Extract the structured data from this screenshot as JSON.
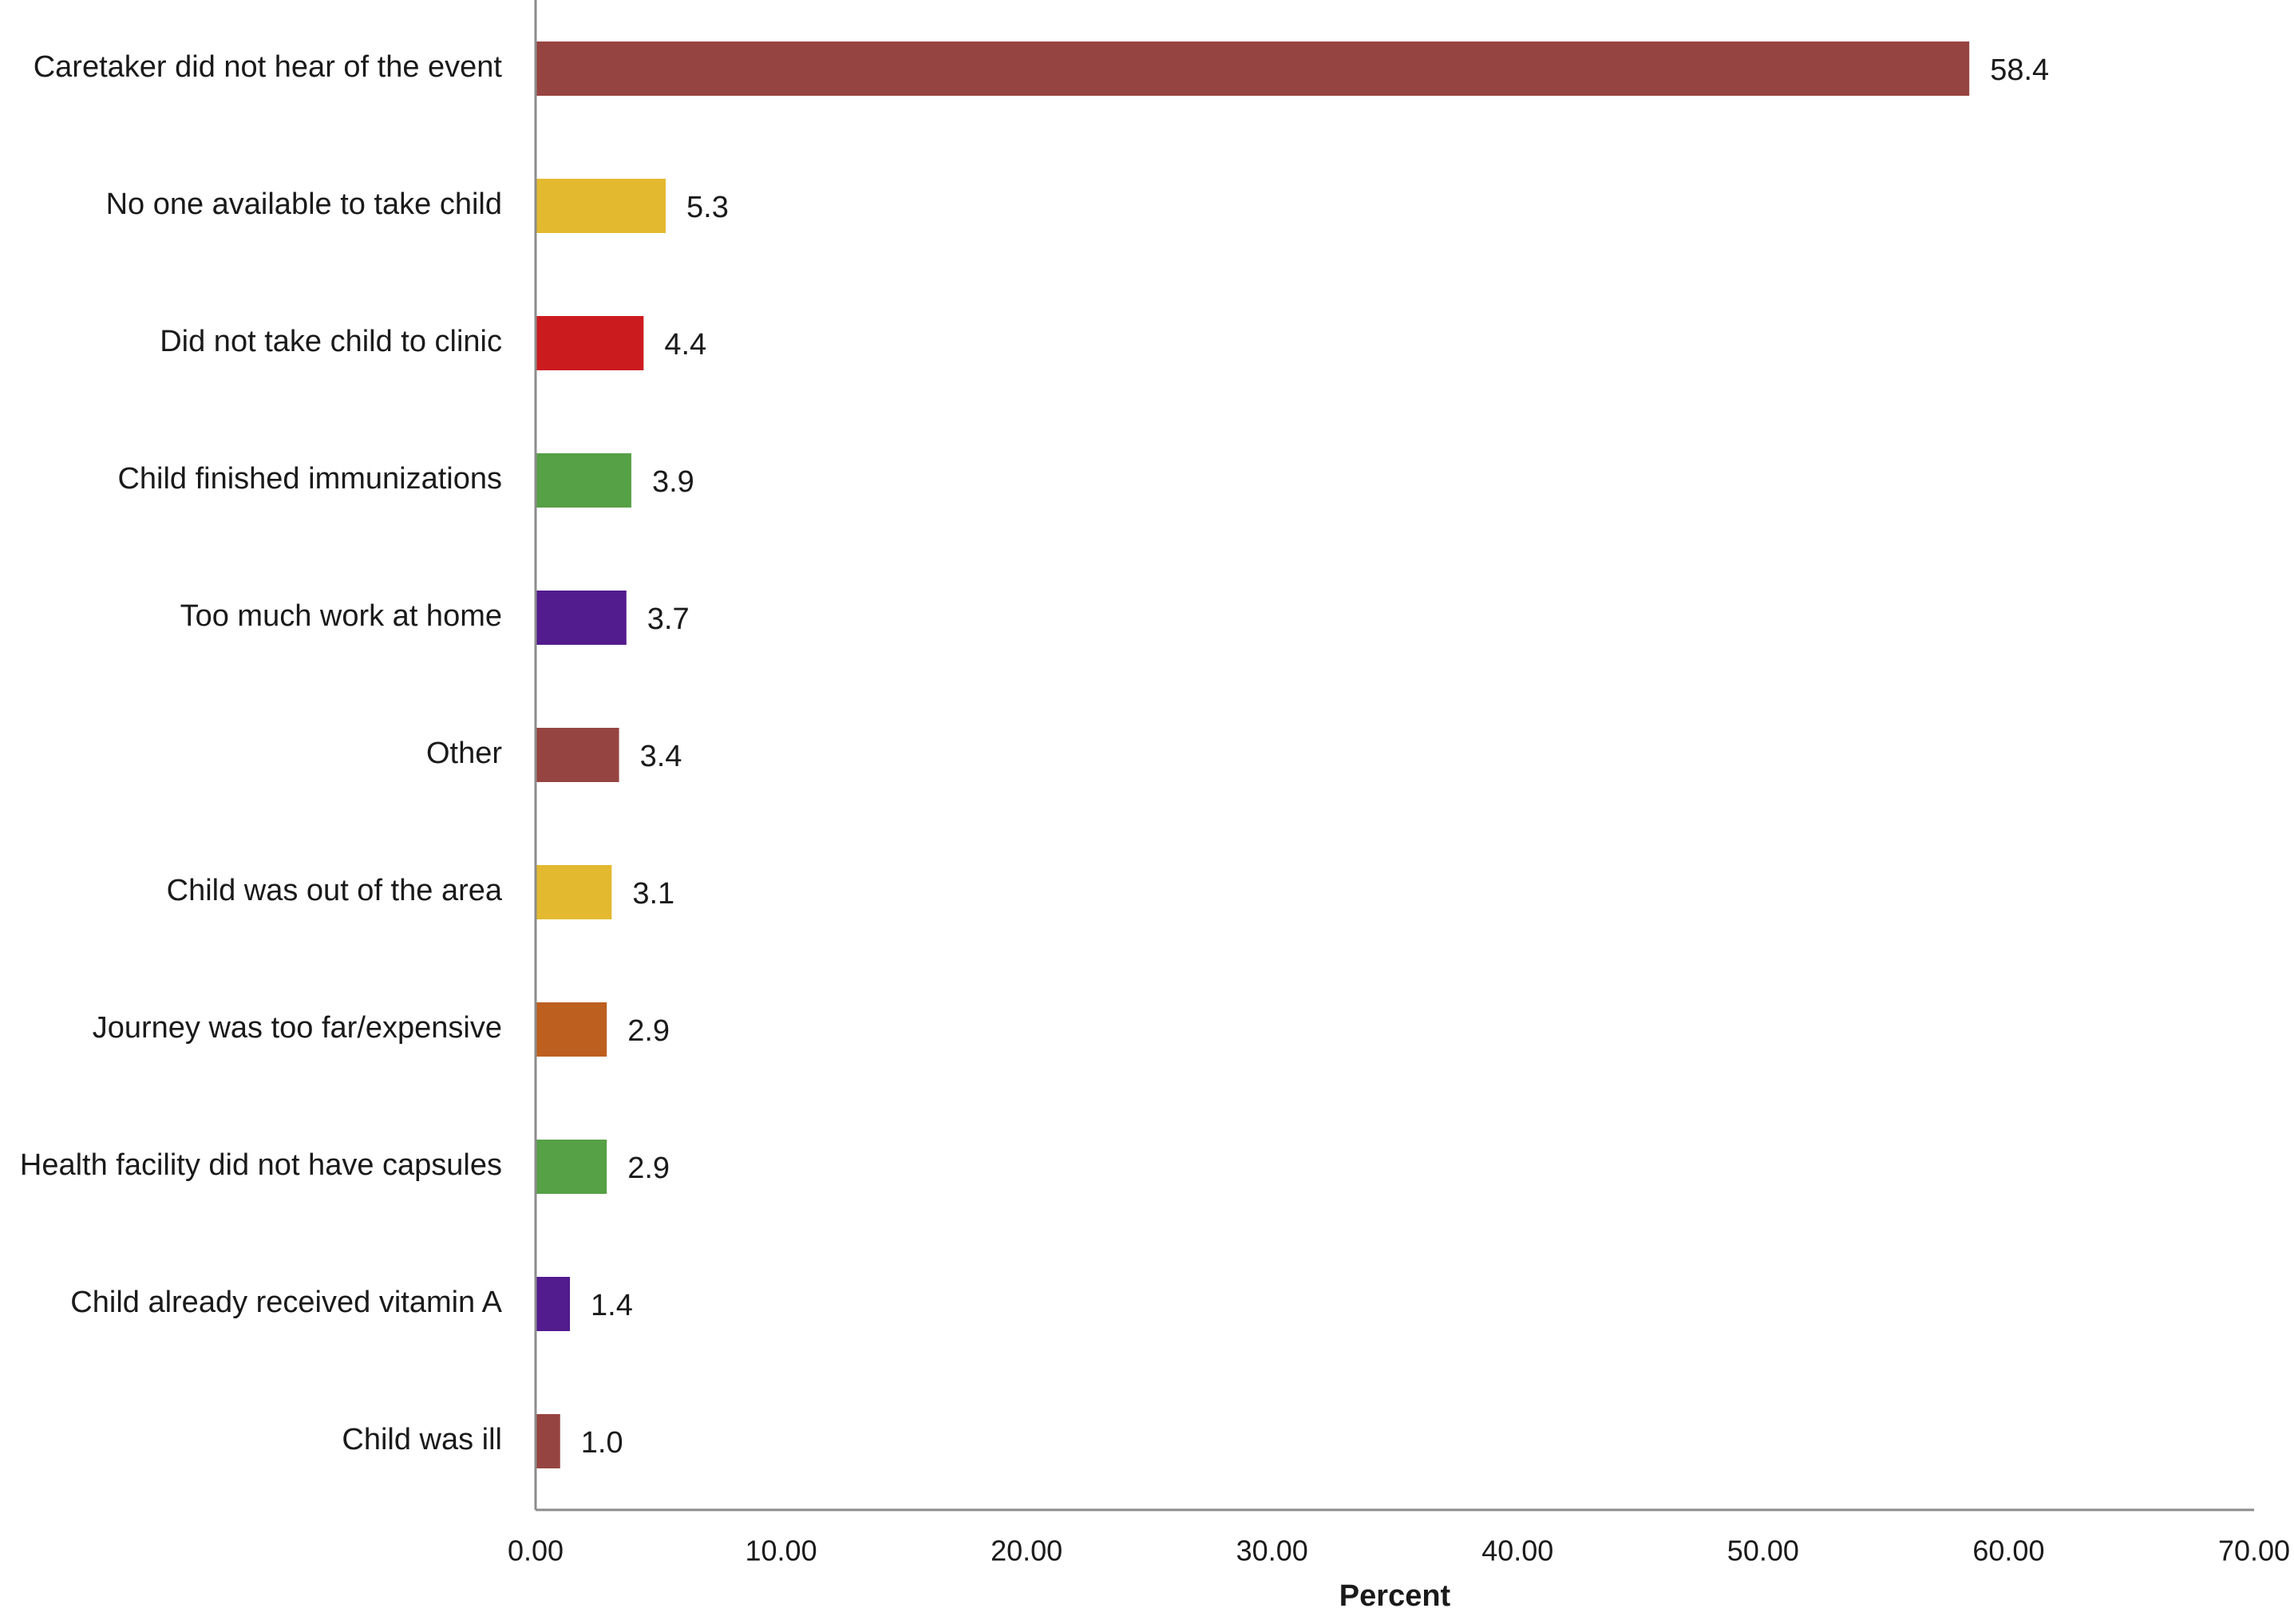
{
  "chart_data": {
    "type": "bar",
    "orientation": "horizontal",
    "categories": [
      "Caretaker did not hear of the event",
      "No one available to take child",
      "Did not take child to clinic",
      "Child finished immunizations",
      "Too much work at home",
      "Other",
      "Child was out of the area",
      "Journey was too far/expensive",
      "Health facility did not have capsules",
      "Child already received vitamin A",
      "Child was ill"
    ],
    "values": [
      58.4,
      5.3,
      4.4,
      3.9,
      3.7,
      3.4,
      3.1,
      2.9,
      2.9,
      1.4,
      1.0
    ],
    "value_labels": [
      "58.4",
      "5.3",
      "4.4",
      "3.9",
      "3.7",
      "3.4",
      "3.1",
      "2.9",
      "2.9",
      "1.4",
      "1.0"
    ],
    "colors": [
      "#964441",
      "#e3b92f",
      "#cc1b1f",
      "#56a046",
      "#521b8e",
      "#964441",
      "#e3b92f",
      "#bd5f1f",
      "#56a046",
      "#521b8e",
      "#964441"
    ],
    "xlabel": "Percent",
    "ylabel": "",
    "xlim": [
      0,
      70
    ],
    "xticks": [
      0,
      10,
      20,
      30,
      40,
      50,
      60,
      70
    ],
    "xtick_labels": [
      "0.00",
      "10.00",
      "20.00",
      "30.00",
      "40.00",
      "50.00",
      "60.00",
      "70.00"
    ],
    "grid": false,
    "legend": false
  }
}
